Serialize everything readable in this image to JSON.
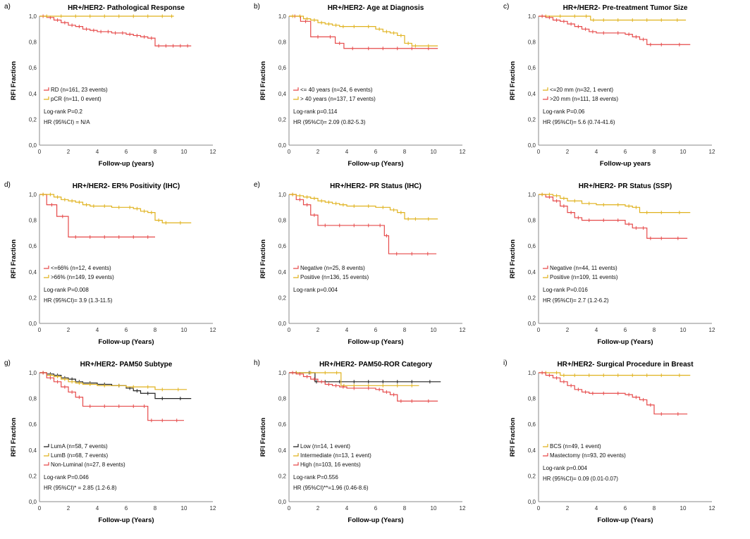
{
  "colors": {
    "red": "#e64a4a",
    "gold": "#e0b21e",
    "black": "#222222",
    "axis": "#888888"
  },
  "chart_data": [
    {
      "type": "line",
      "panel_label": "a)",
      "title": "HR+/HER2- Pathological Response",
      "xlabel": "Follow-up (years)",
      "ylabel": "RFI Fraction",
      "xlim": [
        0,
        12
      ],
      "ylim": [
        0,
        1.0
      ],
      "xticks": [
        "0",
        "2",
        "4",
        "6",
        "8",
        "10",
        "12"
      ],
      "yticks": [
        "0,0",
        "0,2",
        "0,4",
        "0,6",
        "0,8",
        "1,0"
      ],
      "series": [
        {
          "name": "RD (n=161, 23 events)",
          "color": "red",
          "x": [
            0,
            0.5,
            1,
            1.5,
            2,
            2.5,
            3,
            3.5,
            4,
            4.5,
            5,
            5.5,
            6,
            6.5,
            7,
            7.5,
            8,
            8.5,
            9,
            9.5,
            10,
            10.5
          ],
          "y": [
            1.0,
            0.99,
            0.97,
            0.95,
            0.93,
            0.92,
            0.9,
            0.89,
            0.88,
            0.88,
            0.87,
            0.87,
            0.86,
            0.85,
            0.84,
            0.83,
            0.77,
            0.77,
            0.77,
            0.77,
            0.77,
            0.77
          ]
        },
        {
          "name": "pCR (n=11, 0 event)",
          "color": "gold",
          "x": [
            0,
            1,
            2,
            3,
            4,
            5,
            6,
            7,
            8,
            9,
            9.3
          ],
          "y": [
            1,
            1,
            1,
            1,
            1,
            1,
            1,
            1,
            1,
            1,
            1
          ]
        }
      ],
      "annotations": [
        "Log-rank P=0.2",
        "HR (95%CI) = N/A"
      ]
    },
    {
      "type": "line",
      "panel_label": "b)",
      "title": "HR+/HER2- Age at Diagnosis",
      "xlabel": "Follow-up (Years)",
      "ylabel": "RFI Fraction",
      "xlim": [
        0,
        12
      ],
      "ylim": [
        0,
        1.0
      ],
      "xticks": [
        "0",
        "2",
        "4",
        "6",
        "8",
        "10",
        "12"
      ],
      "yticks": [
        "0,0",
        "0,2",
        "0,4",
        "0,6",
        "0,8",
        "1,0"
      ],
      "series": [
        {
          "name": "<= 40 years (n=24, 6 events)",
          "color": "red",
          "x": [
            0,
            0.8,
            1.5,
            2.5,
            3.2,
            3.8,
            5,
            6,
            7,
            8,
            9,
            10.3
          ],
          "y": [
            1,
            0.96,
            0.84,
            0.84,
            0.79,
            0.75,
            0.75,
            0.75,
            0.75,
            0.75,
            0.75,
            0.75
          ]
        },
        {
          "name": "> 40 years (n=137, 17 events)",
          "color": "gold",
          "x": [
            0,
            0.5,
            1,
            1.5,
            2,
            2.5,
            3,
            3.5,
            4,
            5,
            6,
            6.5,
            7,
            7.5,
            8,
            8.5,
            9,
            10.3
          ],
          "y": [
            1,
            1,
            0.98,
            0.97,
            0.95,
            0.94,
            0.93,
            0.92,
            0.92,
            0.92,
            0.9,
            0.88,
            0.87,
            0.85,
            0.79,
            0.77,
            0.77,
            0.77
          ]
        }
      ],
      "annotations": [
        "Log-rank p=0.114",
        "HR (95%CI)= 2.09 (0.82-5.3)"
      ]
    },
    {
      "type": "line",
      "panel_label": "c)",
      "title": "HR+/HER2- Pre-treatment Tumor Size",
      "xlabel": "Follow-up years",
      "ylabel": "RFI Fraction",
      "xlim": [
        0,
        12
      ],
      "ylim": [
        0,
        1.0
      ],
      "xticks": [
        "0",
        "2",
        "4",
        "6",
        "8",
        "10",
        "12"
      ],
      "yticks": [
        "0,0",
        "0,2",
        "0,4",
        "0,6",
        "0,8",
        "1,0"
      ],
      "series": [
        {
          "name": "<=20 mm (n=32, 1 event)",
          "color": "gold",
          "x": [
            0,
            1,
            2,
            3,
            3.6,
            4,
            5,
            6,
            7,
            8,
            9,
            10.2
          ],
          "y": [
            1,
            1,
            1,
            1,
            0.97,
            0.97,
            0.97,
            0.97,
            0.97,
            0.97,
            0.97,
            0.97
          ]
        },
        {
          "name": ">20 mm (n=111, 18 events)",
          "color": "red",
          "x": [
            0,
            0.5,
            1,
            1.5,
            2,
            2.5,
            3,
            3.5,
            4,
            5,
            6,
            6.5,
            7,
            7.5,
            8,
            9,
            10.5
          ],
          "y": [
            1,
            0.99,
            0.97,
            0.96,
            0.94,
            0.92,
            0.9,
            0.88,
            0.87,
            0.87,
            0.86,
            0.84,
            0.82,
            0.78,
            0.78,
            0.78,
            0.78
          ]
        }
      ],
      "annotations": [
        "Log-rank P=0.06",
        "HR (95%CI)= 5.6 (0.74-41.6)"
      ]
    },
    {
      "type": "line",
      "panel_label": "d)",
      "title": "HR+/HER2- ER% Positivity (IHC)",
      "xlabel": "Follow-up (Years)",
      "ylabel": "RFI Fraction",
      "xlim": [
        0,
        12
      ],
      "ylim": [
        0,
        1.0
      ],
      "xticks": [
        "0",
        "2",
        "4",
        "6",
        "8",
        "10",
        "12"
      ],
      "yticks": [
        "0,0",
        "0,2",
        "0,4",
        "0,6",
        "0,8",
        "1,0"
      ],
      "series": [
        {
          "name": "<=66% (n=12, 4 events)",
          "color": "red",
          "x": [
            0,
            0.5,
            1.2,
            2,
            3,
            4,
            5,
            6,
            7,
            8
          ],
          "y": [
            1,
            0.92,
            0.83,
            0.67,
            0.67,
            0.67,
            0.67,
            0.67,
            0.67,
            0.67
          ]
        },
        {
          "name": ">66% (n=149, 19 events)",
          "color": "gold",
          "x": [
            0,
            0.5,
            1,
            1.5,
            2,
            2.5,
            3,
            3.5,
            4,
            5,
            6,
            6.5,
            7,
            7.5,
            8,
            8.5,
            9,
            10.5
          ],
          "y": [
            1,
            1,
            0.98,
            0.96,
            0.95,
            0.94,
            0.92,
            0.91,
            0.91,
            0.9,
            0.9,
            0.89,
            0.87,
            0.86,
            0.8,
            0.78,
            0.78,
            0.78
          ]
        }
      ],
      "annotations": [
        "Log-rank P=0.008",
        "HR (95%CI)= 3.9 (1.3-11.5)"
      ]
    },
    {
      "type": "line",
      "panel_label": "e)",
      "title": "HR+/HER2- PR Status (IHC)",
      "xlabel": "Follow-up (Years)",
      "ylabel": "RFI Fraction",
      "xlim": [
        0,
        12
      ],
      "ylim": [
        0,
        1.0
      ],
      "xticks": [
        "0",
        "2",
        "4",
        "6",
        "8",
        "10",
        "12"
      ],
      "yticks": [
        "0,0",
        "0,2",
        "0,4",
        "0,6",
        "0,8",
        "1,0"
      ],
      "series": [
        {
          "name": "Negative (n=25, 8 events)",
          "color": "red",
          "x": [
            0,
            0.5,
            1,
            1.5,
            2,
            3,
            4,
            5,
            6,
            6.6,
            6.9,
            8,
            9,
            10.2
          ],
          "y": [
            1,
            0.96,
            0.92,
            0.84,
            0.76,
            0.76,
            0.76,
            0.76,
            0.76,
            0.68,
            0.54,
            0.54,
            0.54,
            0.54
          ]
        },
        {
          "name": "Positive (n=136, 15 events)",
          "color": "gold",
          "x": [
            0,
            0.5,
            1,
            1.5,
            2,
            2.5,
            3,
            3.5,
            4,
            5,
            6,
            7,
            7.5,
            8,
            8.5,
            9,
            10.3
          ],
          "y": [
            1,
            0.99,
            0.98,
            0.97,
            0.95,
            0.94,
            0.93,
            0.92,
            0.91,
            0.91,
            0.9,
            0.88,
            0.86,
            0.81,
            0.81,
            0.81,
            0.81
          ]
        }
      ],
      "annotations": [
        "Log-rank p=0.004"
      ]
    },
    {
      "type": "line",
      "panel_label": "",
      "title": "HR+/HER2- PR Status (SSP)",
      "xlabel": "Follow-up (Years)",
      "ylabel": "RFI Fraction",
      "xlim": [
        0,
        12
      ],
      "ylim": [
        0,
        1.0
      ],
      "xticks": [
        "0",
        "2",
        "4",
        "6",
        "8",
        "10",
        "12"
      ],
      "yticks": [
        "0,0",
        "0,2",
        "0,4",
        "0,6",
        "0,8",
        "1,0"
      ],
      "series": [
        {
          "name": "Negative (n=44, 11 events)",
          "color": "red",
          "x": [
            0,
            0.5,
            1,
            1.5,
            2,
            2.5,
            3,
            4,
            5,
            6,
            6.5,
            7,
            7.5,
            8,
            9,
            10.3
          ],
          "y": [
            1,
            0.98,
            0.95,
            0.91,
            0.86,
            0.82,
            0.8,
            0.8,
            0.8,
            0.77,
            0.74,
            0.74,
            0.66,
            0.66,
            0.66,
            0.66
          ]
        },
        {
          "name": "Positive (n=109, 11 events)",
          "color": "gold",
          "x": [
            0,
            0.5,
            1,
            1.5,
            2,
            3,
            4,
            5,
            6,
            6.5,
            7,
            8,
            9,
            10.5
          ],
          "y": [
            1,
            1,
            0.99,
            0.97,
            0.95,
            0.93,
            0.92,
            0.92,
            0.91,
            0.9,
            0.86,
            0.86,
            0.86,
            0.86
          ]
        }
      ],
      "annotations": [
        "Log-rank P=0.016",
        "HR (95%CI)= 2.7 (1.2-6.2)"
      ]
    },
    {
      "type": "line",
      "panel_label": "g)",
      "title": "HR+/HER2- PAM50 Subtype",
      "xlabel": "Follow-up (Years)",
      "ylabel": "RFI Fraction",
      "xlim": [
        0,
        12
      ],
      "ylim": [
        0,
        1.0
      ],
      "xticks": [
        "0",
        "2",
        "4",
        "6",
        "8",
        "10",
        "12"
      ],
      "yticks": [
        "0,0",
        "0,2",
        "0,4",
        "0,6",
        "0,8",
        "1,0"
      ],
      "series": [
        {
          "name": "LumA (n=58, 7 events)",
          "color": "black",
          "x": [
            0,
            0.5,
            1,
            1.5,
            2,
            2.5,
            3,
            4,
            5,
            6,
            6.5,
            7,
            8,
            9,
            10.5
          ],
          "y": [
            1,
            0.99,
            0.98,
            0.96,
            0.95,
            0.93,
            0.92,
            0.91,
            0.9,
            0.88,
            0.86,
            0.84,
            0.8,
            0.8,
            0.8
          ]
        },
        {
          "name": "LumB (n=68, 7 events)",
          "color": "gold",
          "x": [
            0,
            0.5,
            1,
            1.5,
            2,
            2.5,
            3,
            4,
            5,
            6,
            7,
            8,
            9,
            10.2
          ],
          "y": [
            1,
            0.98,
            0.97,
            0.95,
            0.93,
            0.92,
            0.91,
            0.9,
            0.9,
            0.89,
            0.89,
            0.87,
            0.87,
            0.87
          ]
        },
        {
          "name": "Non-Luminal (n=27, 8 events)",
          "color": "red",
          "x": [
            0,
            0.5,
            1,
            1.5,
            2,
            2.5,
            3,
            4,
            5,
            6,
            7,
            7.5,
            8,
            9,
            10
          ],
          "y": [
            1,
            0.96,
            0.93,
            0.89,
            0.85,
            0.81,
            0.74,
            0.74,
            0.74,
            0.74,
            0.74,
            0.63,
            0.63,
            0.63,
            0.63
          ]
        }
      ],
      "annotations": [
        "Log-rank P=0.046",
        "HR (95%CI)* = 2.85 (1.2-6.8)"
      ]
    },
    {
      "type": "line",
      "panel_label": "h)",
      "title": "HR+/HER2- PAM50-ROR Category",
      "xlabel": "Follow-up (Years)",
      "ylabel": "RFI Fraction",
      "xlim": [
        0,
        12
      ],
      "ylim": [
        0,
        1.0
      ],
      "xticks": [
        "0",
        "2",
        "4",
        "6",
        "8",
        "10",
        "12"
      ],
      "yticks": [
        "0,0",
        "0,2",
        "0,4",
        "0,6",
        "0,8",
        "1,0"
      ],
      "series": [
        {
          "name": "Low (n=14, 1 event)",
          "color": "black",
          "x": [
            0,
            1,
            1.8,
            2,
            3,
            4,
            5,
            6,
            7,
            8,
            9,
            10.5
          ],
          "y": [
            1,
            1,
            0.93,
            0.93,
            0.93,
            0.93,
            0.93,
            0.93,
            0.93,
            0.93,
            0.93,
            0.93
          ]
        },
        {
          "name": "Intermediate (n=13, 1 event)",
          "color": "gold",
          "x": [
            0,
            1,
            2,
            3,
            3.6,
            4,
            5,
            6,
            7,
            8,
            9
          ],
          "y": [
            1,
            1,
            1,
            1,
            0.9,
            0.9,
            0.9,
            0.9,
            0.9,
            0.9,
            0.9
          ]
        },
        {
          "name": "High (n=103, 16 events)",
          "color": "red",
          "x": [
            0,
            0.5,
            1,
            1.5,
            2,
            2.5,
            3,
            3.5,
            4,
            5,
            6,
            6.5,
            7,
            7.5,
            8,
            9,
            10.3
          ],
          "y": [
            1,
            0.99,
            0.97,
            0.95,
            0.93,
            0.91,
            0.9,
            0.89,
            0.88,
            0.88,
            0.87,
            0.85,
            0.83,
            0.78,
            0.78,
            0.78,
            0.78
          ]
        }
      ],
      "annotations": [
        "Log-rank P=0.556",
        "HR (95%CI)**=1.96 (0.46-8.6)"
      ]
    },
    {
      "type": "line",
      "panel_label": "i)",
      "title": "HR+/HER2- Surgical Procedure in Breast",
      "xlabel": "Follow-up (Years)",
      "ylabel": "RFI Fraction",
      "xlim": [
        0,
        12
      ],
      "ylim": [
        0,
        1.0
      ],
      "xticks": [
        "0",
        "2",
        "4",
        "6",
        "8",
        "10",
        "12"
      ],
      "yticks": [
        "0,0",
        "0,2",
        "0,4",
        "0,6",
        "0,8",
        "1,0"
      ],
      "series": [
        {
          "name": "BCS (n=49, 1 event)",
          "color": "gold",
          "x": [
            0,
            1,
            1.5,
            2,
            3,
            4,
            5,
            6,
            7,
            8,
            9,
            10.5
          ],
          "y": [
            1,
            1,
            0.98,
            0.98,
            0.98,
            0.98,
            0.98,
            0.98,
            0.98,
            0.98,
            0.98,
            0.98
          ]
        },
        {
          "name": "Mastectomy (n=93, 20 events)",
          "color": "red",
          "x": [
            0,
            0.5,
            1,
            1.5,
            2,
            2.5,
            3,
            3.5,
            4,
            5,
            6,
            6.5,
            7,
            7.5,
            8,
            9,
            10.3
          ],
          "y": [
            1,
            0.98,
            0.96,
            0.93,
            0.9,
            0.87,
            0.85,
            0.84,
            0.84,
            0.84,
            0.83,
            0.81,
            0.79,
            0.75,
            0.68,
            0.68,
            0.68
          ]
        }
      ],
      "annotations": [
        "Log-rank p=0.004",
        "HR (95%CI)= 0.09 (0.01-0.07)"
      ]
    }
  ]
}
